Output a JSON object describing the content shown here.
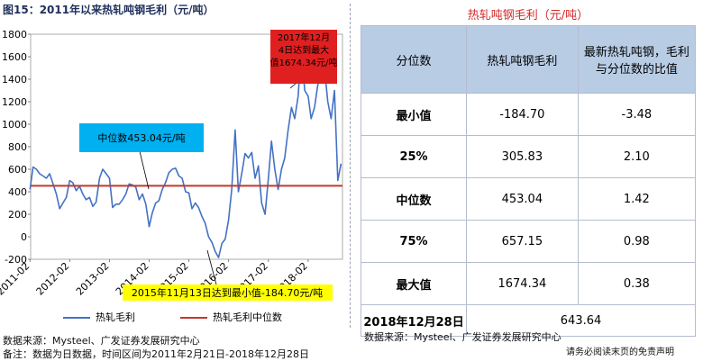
{
  "left_panel": {
    "title": "图15：2011年以来热轧吨钢毛利（元/吨）",
    "legend": [
      {
        "label": "热轧毛利",
        "color": "#4472c4"
      },
      {
        "label": "热轧毛利中位数",
        "color": "#c0392b"
      }
    ],
    "source": "数据来源：Mysteel、广发证券发展研究中心",
    "note": "备注：数据为日数据，时间区间为2011年2月21日-2018年12月28日",
    "annotations": {
      "max": "2017年12月4日达到最大值1674.34元/吨",
      "median": "中位数453.04元/吨",
      "min": "2015年11月13日达到最小值-184.70元/吨"
    }
  },
  "chart_data": {
    "type": "line",
    "ylim": [
      -200,
      1800
    ],
    "yticks": [
      "-200",
      "0",
      "200",
      "400",
      "600",
      "800",
      "1000",
      "1200",
      "1400",
      "1600",
      "1800"
    ],
    "xlim": [
      "2011-02-21",
      "2018-12-28"
    ],
    "xticks": [
      "2011-02",
      "2012-02",
      "2013-02",
      "2014-02",
      "2015-02",
      "2016-02",
      "2017-02",
      "2018-02"
    ],
    "series": [
      {
        "name": "热轧毛利",
        "x": [
          "2011-02",
          "2011-03",
          "2011-04",
          "2011-05",
          "2011-06",
          "2011-07",
          "2011-08",
          "2011-09",
          "2011-10",
          "2011-11",
          "2011-12",
          "2012-01",
          "2012-02",
          "2012-03",
          "2012-04",
          "2012-05",
          "2012-06",
          "2012-07",
          "2012-08",
          "2012-09",
          "2012-10",
          "2012-11",
          "2012-12",
          "2013-01",
          "2013-02",
          "2013-03",
          "2013-04",
          "2013-05",
          "2013-06",
          "2013-07",
          "2013-08",
          "2013-09",
          "2013-10",
          "2013-11",
          "2013-12",
          "2014-01",
          "2014-02",
          "2014-03",
          "2014-04",
          "2014-05",
          "2014-06",
          "2014-07",
          "2014-08",
          "2014-09",
          "2014-10",
          "2014-11",
          "2014-12",
          "2015-01",
          "2015-02",
          "2015-03",
          "2015-04",
          "2015-05",
          "2015-06",
          "2015-07",
          "2015-08",
          "2015-09",
          "2015-10",
          "2015-11",
          "2015-12",
          "2016-01",
          "2016-02",
          "2016-03",
          "2016-04",
          "2016-05",
          "2016-06",
          "2016-07",
          "2016-08",
          "2016-09",
          "2016-10",
          "2016-11",
          "2016-12",
          "2017-01",
          "2017-02",
          "2017-03",
          "2017-04",
          "2017-05",
          "2017-06",
          "2017-07",
          "2017-08",
          "2017-09",
          "2017-10",
          "2017-11",
          "2017-12",
          "2018-01",
          "2018-02",
          "2018-03",
          "2018-04",
          "2018-05",
          "2018-06",
          "2018-07",
          "2018-08",
          "2018-09",
          "2018-10",
          "2018-11",
          "2018-12"
        ],
        "values": [
          420,
          620,
          600,
          560,
          540,
          520,
          560,
          470,
          380,
          250,
          300,
          350,
          500,
          480,
          410,
          450,
          380,
          330,
          350,
          270,
          310,
          520,
          600,
          560,
          520,
          260,
          290,
          290,
          330,
          380,
          470,
          460,
          440,
          330,
          380,
          290,
          90,
          210,
          300,
          320,
          420,
          480,
          570,
          600,
          610,
          540,
          520,
          400,
          390,
          250,
          300,
          260,
          180,
          120,
          0,
          -50,
          -130,
          -184.7,
          -60,
          -20,
          150,
          420,
          950,
          400,
          560,
          740,
          700,
          750,
          520,
          630,
          300,
          200,
          520,
          850,
          600,
          420,
          600,
          700,
          950,
          1150,
          1050,
          1250,
          1674.34,
          1300,
          1250,
          1050,
          1150,
          1350,
          1450,
          1500,
          1200,
          1050,
          1300,
          500,
          650
        ],
        "color": "#4472c4"
      },
      {
        "name": "热轧毛利中位数",
        "x": [
          "2011-02-21",
          "2018-12-28"
        ],
        "values": [
          453.04,
          453.04
        ],
        "color": "#c0392b"
      }
    ]
  },
  "right_panel": {
    "title": "热轧吨钢毛利（元/吨）",
    "headers": [
      "分位数",
      "热轧吨钢毛利",
      "最新热轧吨钢，毛利与分位数的比值"
    ],
    "rows": [
      {
        "label": "最小值",
        "value": "-184.70",
        "ratio": "-3.48"
      },
      {
        "label": "25%",
        "value": "305.83",
        "ratio": "2.10"
      },
      {
        "label": "中位数",
        "value": "453.04",
        "ratio": "1.42"
      },
      {
        "label": "75%",
        "value": "657.15",
        "ratio": "0.98"
      },
      {
        "label": "最大值",
        "value": "1674.34",
        "ratio": "0.38"
      }
    ],
    "latest": {
      "label": "2018年12月28日",
      "value": "643.64"
    },
    "source": "数据来源：Mysteel、广发证券发展研究中心",
    "disclaimer": "请务必阅读末页的免责声明"
  }
}
